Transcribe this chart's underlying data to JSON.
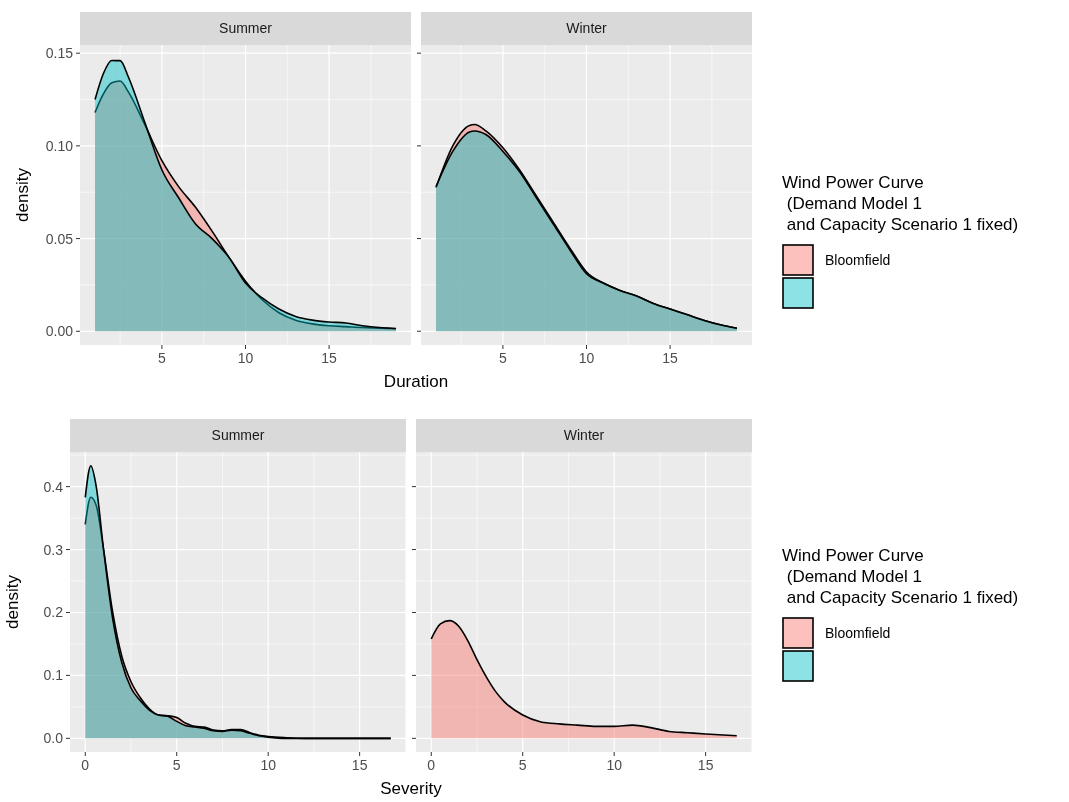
{
  "chart_data": [
    {
      "type": "area",
      "title": "Summer",
      "ylabel": "density",
      "xlabel": "Duration",
      "legend_title": "Wind Power Curve\n (Demand Model 1\n and Capacity Scenario 1 fixed)",
      "legend": "right",
      "grid": true,
      "xlim": [
        0.1,
        19.9
      ],
      "xticks": [
        5,
        10,
        15
      ],
      "ylim": [
        -0.0074,
        0.1544
      ],
      "yticks": [
        {
          "value": 0,
          "label": "0.00"
        },
        {
          "value": 0.05,
          "label": "0.05"
        },
        {
          "value": 0.1,
          "label": "0.10"
        },
        {
          "value": 0.15,
          "label": "0.15"
        }
      ],
      "x": [
        1,
        1.5,
        2,
        2.5,
        3,
        4,
        5,
        6,
        7,
        8,
        9,
        10,
        11,
        12,
        13,
        14,
        15,
        16,
        17,
        18,
        19
      ],
      "series": [
        {
          "name": "Bloomfield",
          "color": "#f8766d",
          "values": [
            0.118,
            0.128,
            0.134,
            0.135,
            0.129,
            0.111,
            0.092,
            0.078,
            0.067,
            0.054,
            0.04,
            0.027,
            0.017,
            0.01,
            0.006,
            0.004,
            0.003,
            0.0025,
            0.002,
            0.0017,
            0.0014
          ]
        },
        {
          "color": "#00bfc4",
          "values": [
            0.125,
            0.139,
            0.146,
            0.146,
            0.137,
            0.112,
            0.087,
            0.072,
            0.058,
            0.05,
            0.04,
            0.026,
            0.018,
            0.012,
            0.008,
            0.006,
            0.005,
            0.0045,
            0.003,
            0.002,
            0.0015
          ]
        }
      ]
    },
    {
      "type": "area",
      "title": "Winter",
      "grid": true,
      "tick_labels": "x",
      "xlim": [
        0.1,
        19.9
      ],
      "xticks": [
        5,
        10,
        15
      ],
      "ylim": [
        -0.0074,
        0.1544
      ],
      "yticks": [
        {
          "value": 0,
          "label": null
        },
        {
          "value": 0.05,
          "label": null
        },
        {
          "value": 0.1,
          "label": null
        },
        {
          "value": 0.15,
          "label": null
        }
      ],
      "x": [
        1,
        2,
        3,
        3.3,
        4,
        5,
        6,
        7,
        8,
        9,
        10,
        11,
        12,
        13,
        14,
        15,
        16,
        17,
        18,
        19
      ],
      "series": [
        {
          "color": "#f8766d",
          "values": [
            0.0775,
            0.1,
            0.111,
            0.1115,
            0.108,
            0.099,
            0.087,
            0.073,
            0.059,
            0.045,
            0.032,
            0.026,
            0.022,
            0.019,
            0.015,
            0.012,
            0.009,
            0.006,
            0.0035,
            0.0016
          ]
        },
        {
          "color": "#00bfc4",
          "values": [
            0.078,
            0.097,
            0.1075,
            0.108,
            0.106,
            0.097,
            0.086,
            0.072,
            0.058,
            0.044,
            0.031,
            0.026,
            0.022,
            0.019,
            0.015,
            0.012,
            0.009,
            0.006,
            0.0035,
            0.0016
          ]
        }
      ]
    },
    {
      "type": "area",
      "title": "Summer",
      "ylabel": "density",
      "xlabel": "Severity",
      "legend_title": "Wind Power Curve\n (Demand Model 1\n and Capacity Scenario 1 fixed)",
      "legend": "right",
      "grid": true,
      "xlim": [
        -0.835,
        17.535
      ],
      "xticks": [
        0,
        5,
        10,
        15
      ],
      "ylim": [
        -0.0217,
        0.455
      ],
      "yticks": [
        {
          "value": 0,
          "label": "0.0"
        },
        {
          "value": 0.1,
          "label": "0.1"
        },
        {
          "value": 0.2,
          "label": "0.2"
        },
        {
          "value": 0.3,
          "label": "0.3"
        },
        {
          "value": 0.4,
          "label": "0.4"
        }
      ],
      "x": [
        0,
        0.3,
        0.6,
        1,
        1.5,
        2,
        2.5,
        3,
        3.5,
        4,
        4.5,
        5,
        5.5,
        6,
        6.5,
        7,
        7.5,
        8,
        8.5,
        9,
        9.5,
        10,
        11,
        12,
        14,
        16.7
      ],
      "series": [
        {
          "name": "Bloomfield",
          "color": "#f8766d",
          "values": [
            0.34,
            0.383,
            0.37,
            0.3,
            0.2,
            0.13,
            0.09,
            0.065,
            0.047,
            0.037,
            0.036,
            0.033,
            0.024,
            0.019,
            0.018,
            0.013,
            0.012,
            0.014,
            0.014,
            0.009,
            0.005,
            0.003,
            0.001,
            0,
            0,
            0
          ]
        },
        {
          "color": "#00bfc4",
          "values": [
            0.383,
            0.433,
            0.4,
            0.3,
            0.19,
            0.12,
            0.08,
            0.06,
            0.045,
            0.037,
            0.035,
            0.027,
            0.02,
            0.018,
            0.016,
            0.012,
            0.011,
            0.013,
            0.012,
            0.008,
            0.004,
            0.002,
            0,
            0,
            0,
            0
          ]
        }
      ]
    },
    {
      "type": "area",
      "title": "Winter",
      "grid": true,
      "tick_labels": "x",
      "xlim": [
        -0.835,
        17.535
      ],
      "xticks": [
        0,
        5,
        10,
        15
      ],
      "ylim": [
        -0.0217,
        0.455
      ],
      "yticks": [
        {
          "value": 0,
          "label": null
        },
        {
          "value": 0.1,
          "label": null
        },
        {
          "value": 0.2,
          "label": null
        },
        {
          "value": 0.3,
          "label": null
        },
        {
          "value": 0.4,
          "label": null
        }
      ],
      "x": [
        0,
        0.5,
        1,
        1.5,
        2,
        2.5,
        3,
        3.5,
        4,
        5,
        6,
        7,
        8,
        9,
        10,
        11,
        12,
        13,
        14,
        15,
        16.7
      ],
      "series": [
        {
          "color": "#f8766d",
          "values": [
            0.158,
            0.182,
            0.187,
            0.178,
            0.155,
            0.125,
            0.098,
            0.075,
            0.058,
            0.037,
            0.026,
            0.023,
            0.021,
            0.019,
            0.019,
            0.021,
            0.017,
            0.011,
            0.009,
            0.007,
            0.004
          ]
        }
      ]
    }
  ]
}
